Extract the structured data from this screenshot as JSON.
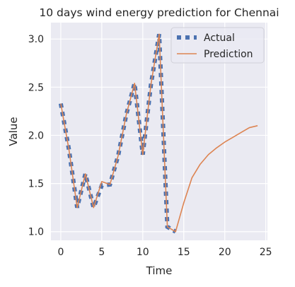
{
  "chart_data": {
    "type": "line",
    "title": "10 days wind energy prediction for Chennai",
    "xlabel": "Time",
    "ylabel": "Value",
    "xlim": [
      -1.2,
      25.2
    ],
    "ylim": [
      0.91,
      3.17
    ],
    "xticks": [
      0,
      5,
      10,
      15,
      20,
      25
    ],
    "yticks": [
      1.0,
      1.5,
      2.0,
      2.5,
      3.0
    ],
    "xtick_labels": [
      "0",
      "5",
      "10",
      "15",
      "20",
      "25"
    ],
    "ytick_labels": [
      "1.0",
      "1.5",
      "2.0",
      "2.5",
      "3.0"
    ],
    "grid": true,
    "legend_position": "top-right",
    "background_color": "#eaeaf2",
    "series": [
      {
        "name": "Actual",
        "style": "dotted-square",
        "color": "#4c72b0",
        "x": [
          0,
          1,
          2,
          3,
          4,
          5,
          6,
          7,
          8,
          9,
          10,
          11,
          12,
          13,
          14
        ],
        "y": [
          2.33,
          1.85,
          1.25,
          1.6,
          1.25,
          1.48,
          1.49,
          1.79,
          2.22,
          2.54,
          1.8,
          2.53,
          3.05,
          1.05,
          1.0
        ]
      },
      {
        "name": "Prediction",
        "style": "solid",
        "color": "#dd8452",
        "x": [
          0,
          1,
          2,
          3,
          4,
          5,
          6,
          7,
          8,
          9,
          10,
          11,
          12,
          13,
          14,
          15,
          16,
          17,
          18,
          19,
          20,
          21,
          22,
          23,
          24
        ],
        "y": [
          2.33,
          1.85,
          1.25,
          1.6,
          1.25,
          1.52,
          1.49,
          1.79,
          2.22,
          2.54,
          1.8,
          2.53,
          3.05,
          1.05,
          1.0,
          1.3,
          1.56,
          1.7,
          1.8,
          1.87,
          1.93,
          1.98,
          2.03,
          2.08,
          2.1
        ]
      }
    ]
  }
}
